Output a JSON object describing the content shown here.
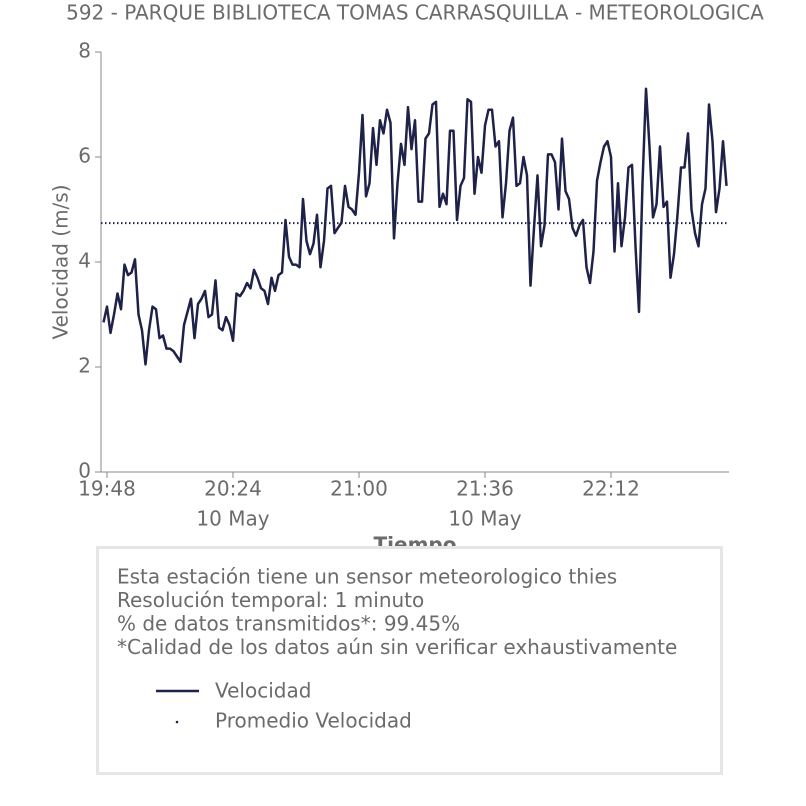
{
  "chart_data": {
    "type": "line",
    "title": "592 - PARQUE BIBLIOTECA TOMAS CARRASQUILLA - METEOROLOGICA",
    "y_label": "Velocidad (m/s)",
    "x_label": "Tiempo",
    "ylim": [
      0,
      8
    ],
    "yticks": [
      0,
      2,
      4,
      6,
      8
    ],
    "xlim": [
      "19:46",
      "22:46"
    ],
    "xticks": [
      "19:48",
      "20:24",
      "21:00",
      "21:36",
      "22:12"
    ],
    "xtick_sublabels": [
      null,
      "10 May",
      null,
      "10 May",
      null
    ],
    "x": [
      "19:47",
      "19:48",
      "19:49",
      "19:50",
      "19:51",
      "19:52",
      "19:53",
      "19:54",
      "19:55",
      "19:56",
      "19:57",
      "19:58",
      "19:59",
      "20:00",
      "20:01",
      "20:02",
      "20:03",
      "20:04",
      "20:05",
      "20:06",
      "20:07",
      "20:08",
      "20:09",
      "20:10",
      "20:11",
      "20:12",
      "20:13",
      "20:14",
      "20:15",
      "20:16",
      "20:17",
      "20:18",
      "20:19",
      "20:20",
      "20:21",
      "20:22",
      "20:23",
      "20:24",
      "20:25",
      "20:26",
      "20:27",
      "20:28",
      "20:29",
      "20:30",
      "20:31",
      "20:32",
      "20:33",
      "20:34",
      "20:35",
      "20:36",
      "20:37",
      "20:38",
      "20:39",
      "20:40",
      "20:41",
      "20:42",
      "20:43",
      "20:44",
      "20:45",
      "20:46",
      "20:47",
      "20:48",
      "20:49",
      "20:50",
      "20:51",
      "20:52",
      "20:53",
      "20:54",
      "20:55",
      "20:56",
      "20:57",
      "20:58",
      "20:59",
      "21:00",
      "21:01",
      "21:02",
      "21:03",
      "21:04",
      "21:05",
      "21:06",
      "21:07",
      "21:08",
      "21:09",
      "21:10",
      "21:11",
      "21:12",
      "21:13",
      "21:14",
      "21:15",
      "21:16",
      "21:17",
      "21:18",
      "21:19",
      "21:20",
      "21:21",
      "21:22",
      "21:23",
      "21:24",
      "21:25",
      "21:26",
      "21:27",
      "21:28",
      "21:29",
      "21:30",
      "21:31",
      "21:32",
      "21:33",
      "21:34",
      "21:35",
      "21:36",
      "21:37",
      "21:38",
      "21:39",
      "21:40",
      "21:41",
      "21:42",
      "21:43",
      "21:44",
      "21:45",
      "21:46",
      "21:47",
      "21:48",
      "21:49",
      "21:50",
      "21:51",
      "21:52",
      "21:53",
      "21:54",
      "21:55",
      "21:56",
      "21:57",
      "21:58",
      "21:59",
      "22:00",
      "22:01",
      "22:02",
      "22:03",
      "22:04",
      "22:05",
      "22:06",
      "22:07",
      "22:08",
      "22:09",
      "22:10",
      "22:11",
      "22:12",
      "22:13",
      "22:14",
      "22:15",
      "22:16",
      "22:17",
      "22:18",
      "22:19",
      "22:20",
      "22:21",
      "22:22",
      "22:23",
      "22:24",
      "22:25",
      "22:26",
      "22:27",
      "22:28",
      "22:29",
      "22:30",
      "22:31",
      "22:32",
      "22:33",
      "22:34",
      "22:35",
      "22:36",
      "22:37",
      "22:38",
      "22:39",
      "22:40",
      "22:41",
      "22:42",
      "22:43",
      "22:44",
      "22:45"
    ],
    "series": [
      {
        "name": "Velocidad",
        "color": "#1e2148",
        "values": [
          2.85,
          3.15,
          2.65,
          3.0,
          3.4,
          3.1,
          3.95,
          3.75,
          3.8,
          4.05,
          3.0,
          2.7,
          2.05,
          2.7,
          3.15,
          3.1,
          2.55,
          2.6,
          2.35,
          2.35,
          2.3,
          2.2,
          2.1,
          2.8,
          3.05,
          3.3,
          2.55,
          3.2,
          3.3,
          3.45,
          2.95,
          3.0,
          3.65,
          2.75,
          2.7,
          2.95,
          2.8,
          2.5,
          3.4,
          3.35,
          3.45,
          3.6,
          3.5,
          3.85,
          3.7,
          3.5,
          3.45,
          3.2,
          3.7,
          3.45,
          3.75,
          3.8,
          4.8,
          4.1,
          3.95,
          3.95,
          3.9,
          5.2,
          4.4,
          4.15,
          4.35,
          4.9,
          3.9,
          4.4,
          5.4,
          5.45,
          4.55,
          4.65,
          4.75,
          5.45,
          5.05,
          5.0,
          4.9,
          5.7,
          6.8,
          5.25,
          5.5,
          6.55,
          5.85,
          6.7,
          6.45,
          6.9,
          6.65,
          4.45,
          5.5,
          6.25,
          5.85,
          6.95,
          6.15,
          6.7,
          5.15,
          5.15,
          6.35,
          6.45,
          7.0,
          7.05,
          5.05,
          5.3,
          5.1,
          6.5,
          6.5,
          4.8,
          5.45,
          5.6,
          7.1,
          7.05,
          5.3,
          6.0,
          5.7,
          6.6,
          6.9,
          6.9,
          6.2,
          6.3,
          4.85,
          5.5,
          6.5,
          6.75,
          5.45,
          5.5,
          6.0,
          5.65,
          3.55,
          4.65,
          5.65,
          4.3,
          4.7,
          6.05,
          6.05,
          5.9,
          5.0,
          6.35,
          5.35,
          5.2,
          4.65,
          4.5,
          4.7,
          4.8,
          3.9,
          3.6,
          4.2,
          5.55,
          5.9,
          6.2,
          6.3,
          6.0,
          4.2,
          5.5,
          4.3,
          4.85,
          5.8,
          5.85,
          4.3,
          3.05,
          5.5,
          7.3,
          6.2,
          4.85,
          5.1,
          6.2,
          5.05,
          5.15,
          3.7,
          4.15,
          4.9,
          5.8,
          5.8,
          6.45,
          5.0,
          4.55,
          4.3,
          5.1,
          5.4,
          7.0,
          6.3,
          4.95,
          5.4,
          6.3,
          5.45
        ]
      }
    ],
    "mean": {
      "name": "Promedio Velocidad",
      "value": 4.74,
      "color": "#1e2148"
    },
    "info_box": [
      "Esta estación tiene un sensor meteorologico thies",
      "Resolución temporal: 1 minuto",
      "% de datos transmitidos*: 99.45%",
      "*Calidad de los datos aún sin verificar exhaustivamente"
    ]
  }
}
